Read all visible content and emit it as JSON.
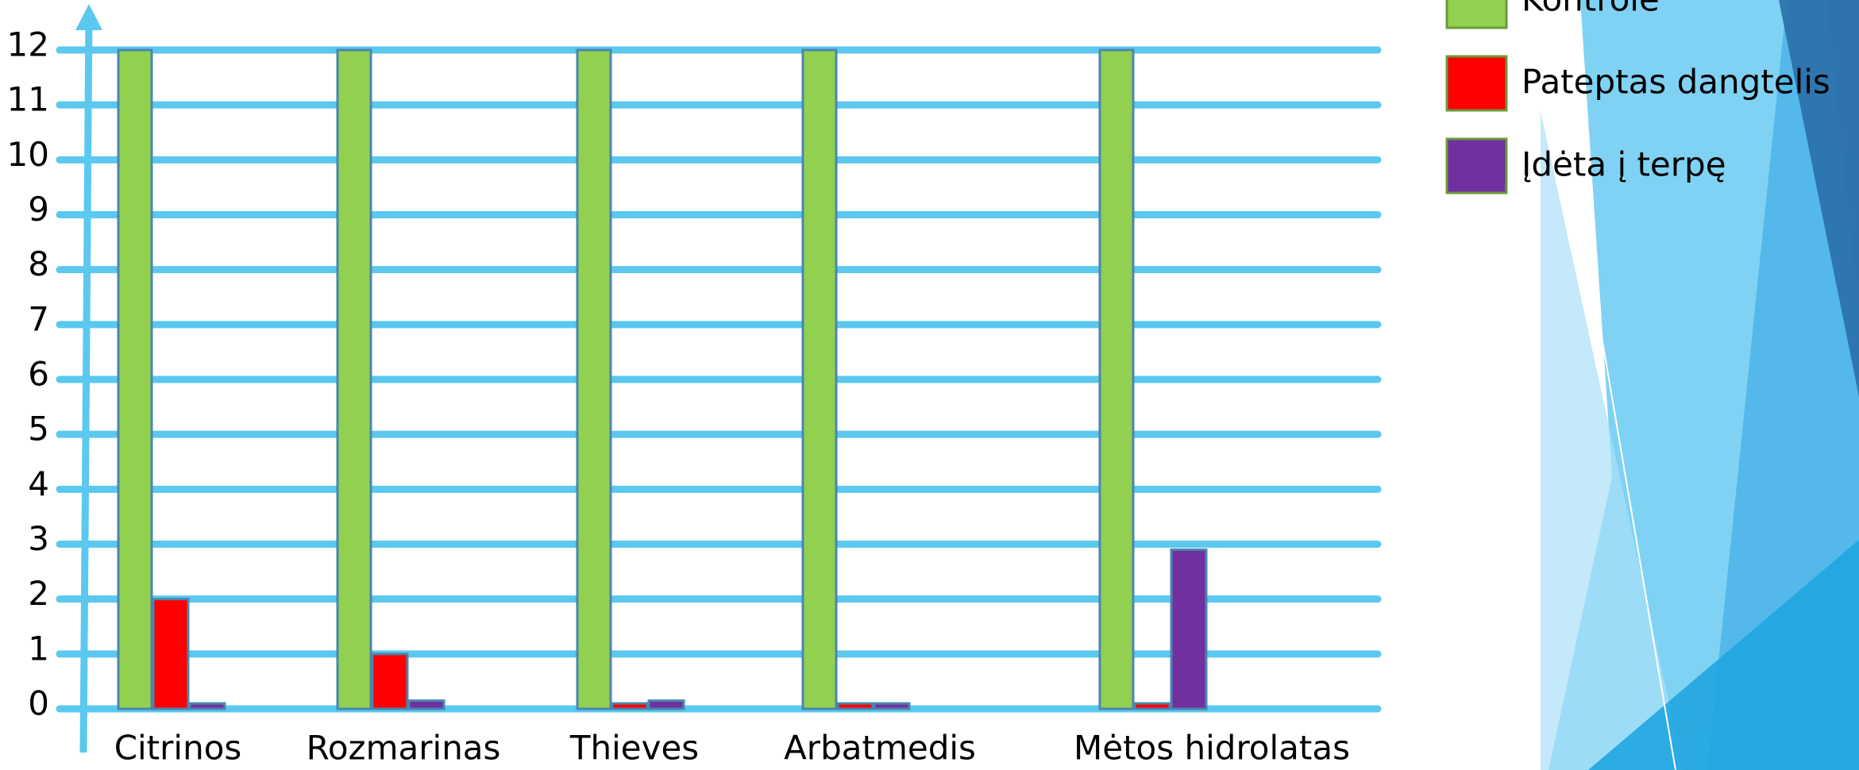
{
  "chart_data": {
    "type": "bar",
    "categories": [
      "Citrinos",
      "Rozmarinas",
      "Thieves",
      "Arbatmedis",
      "Mėtos hidrolatas"
    ],
    "series": [
      {
        "name": "Kontrolė",
        "color": "#92d050",
        "values": [
          12,
          12,
          12,
          12,
          12
        ]
      },
      {
        "name": "Pateptas dangtelis",
        "color": "#ff0000",
        "values": [
          2,
          1,
          0.1,
          0.1,
          0.1
        ]
      },
      {
        "name": "Įdėta į terpę",
        "color": "#7030a0",
        "values": [
          0.1,
          0.15,
          0.15,
          0.1,
          2.9
        ]
      }
    ],
    "ylim": [
      0,
      12
    ],
    "yticks": [
      0,
      1,
      2,
      3,
      4,
      5,
      6,
      7,
      8,
      9,
      10,
      11,
      12
    ],
    "grid": true
  }
}
